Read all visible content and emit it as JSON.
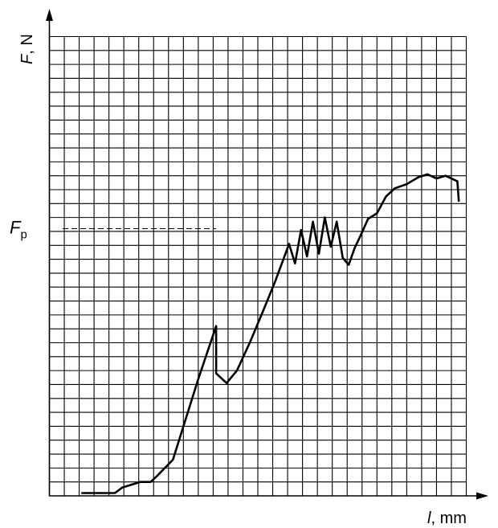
{
  "chart_data": {
    "type": "line",
    "title": "",
    "ylabel": {
      "symbol": "F",
      "unit": ", N"
    },
    "xlabel": {
      "symbol": "l",
      "unit": ", mm"
    },
    "annotation": {
      "symbol": "F",
      "subscript": "p",
      "y": 19.2,
      "x_end": 11.2
    },
    "grid": true,
    "xlim": [
      0,
      28
    ],
    "ylim": [
      0,
      33
    ],
    "series": [
      {
        "x": [
          2.2,
          4.4,
          4.9,
          6.1,
          6.8,
          7.2,
          8.3,
          10.0,
          11.2,
          11.2,
          11.9,
          12.6,
          13.5,
          14.4,
          15.2,
          16.1,
          16.5,
          16.9,
          17.3,
          17.7,
          18.1,
          18.5,
          18.9,
          19.3,
          19.7,
          20.1,
          20.5,
          20.9,
          21.4,
          22.0,
          22.6,
          23.2,
          24.0,
          24.8,
          25.4,
          26.0,
          26.6,
          27.0,
          27.4,
          27.5
        ],
        "y": [
          0.2,
          0.2,
          0.6,
          1.0,
          1.0,
          1.4,
          2.6,
          8.4,
          12.2,
          8.8,
          8.1,
          9.0,
          11.1,
          13.4,
          15.5,
          18.1,
          16.7,
          19.1,
          17.2,
          19.7,
          17.4,
          20.0,
          17.9,
          19.7,
          17.1,
          16.6,
          17.8,
          18.7,
          19.9,
          20.3,
          21.5,
          22.1,
          22.4,
          22.9,
          23.1,
          22.8,
          23.0,
          22.8,
          22.6,
          21.2
        ]
      }
    ]
  }
}
